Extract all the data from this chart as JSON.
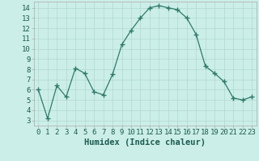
{
  "x": [
    0,
    1,
    2,
    3,
    4,
    5,
    6,
    7,
    8,
    9,
    10,
    11,
    12,
    13,
    14,
    15,
    16,
    17,
    18,
    19,
    20,
    21,
    22,
    23
  ],
  "y": [
    6.0,
    3.2,
    6.4,
    5.3,
    8.1,
    7.6,
    5.8,
    5.5,
    7.5,
    10.4,
    11.8,
    13.0,
    14.0,
    14.2,
    14.0,
    13.8,
    13.0,
    11.4,
    8.3,
    7.6,
    6.8,
    5.2,
    5.0,
    5.3
  ],
  "line_color": "#2d7a6a",
  "marker": "+",
  "marker_size": 4,
  "bg_color": "#cceee8",
  "grid_color": "#b0d8d2",
  "xlabel": "Humidex (Indice chaleur)",
  "ylim": [
    2.5,
    14.6
  ],
  "xlim": [
    -0.5,
    23.5
  ],
  "yticks": [
    3,
    4,
    5,
    6,
    7,
    8,
    9,
    10,
    11,
    12,
    13,
    14
  ],
  "xticks": [
    0,
    1,
    2,
    3,
    4,
    5,
    6,
    7,
    8,
    9,
    10,
    11,
    12,
    13,
    14,
    15,
    16,
    17,
    18,
    19,
    20,
    21,
    22,
    23
  ],
  "xtick_labels": [
    "0",
    "1",
    "2",
    "3",
    "4",
    "5",
    "6",
    "7",
    "8",
    "9",
    "10",
    "11",
    "12",
    "13",
    "14",
    "15",
    "16",
    "17",
    "18",
    "19",
    "20",
    "21",
    "22",
    "23"
  ],
  "xlabel_fontsize": 7.5,
  "tick_fontsize": 6.5
}
